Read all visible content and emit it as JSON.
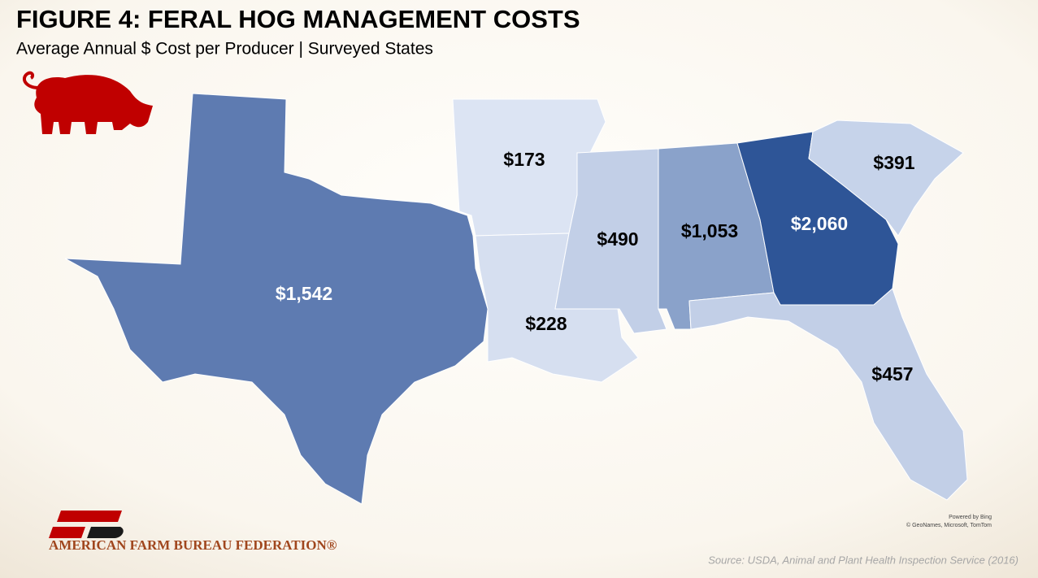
{
  "chart_data": {
    "type": "choropleth",
    "title": "FIGURE 4: FERAL HOG MANAGEMENT COSTS",
    "subtitle": "Average Annual $ Cost per Producer | Surveyed States",
    "values": [
      1542,
      173,
      228,
      490,
      1053,
      2060,
      391,
      457
    ],
    "value_labels": [
      "$1,542",
      "$173",
      "$228",
      "$490",
      "$1,053",
      "$2,060",
      "$391",
      "$457"
    ],
    "colors": [
      "#5e7bb1",
      "#dce4f3",
      "#d6dff0",
      "#c2cfe7",
      "#8aa2ca",
      "#2e5597",
      "#c6d3ea",
      "#c2cfe7"
    ],
    "label_colors": [
      "#ffffff",
      "#000000",
      "#000000",
      "#000000",
      "#000000",
      "#ffffff",
      "#000000",
      "#000000"
    ],
    "source": "Source: USDA, Animal and Plant Health Inspection Service (2016)",
    "attribution": [
      "Powered by Bing",
      "© GeoNames, Microsoft, TomTom"
    ],
    "organization": "AMERICAN FARM BUREAU FEDERATION®"
  }
}
